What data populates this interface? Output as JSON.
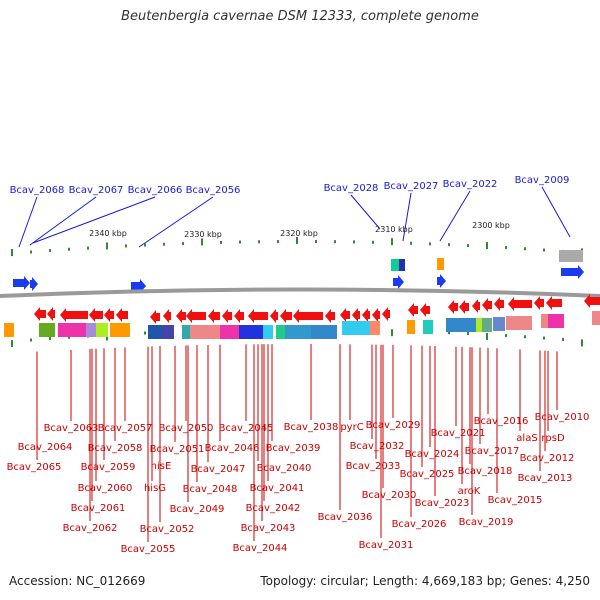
{
  "title": "Beutenbergia cavernae DSM 12333, complete genome",
  "footer": {
    "accession": "Accession: NC_012669",
    "summary": "Topology: circular; Length: 4,669,183 bp; Genes: 4,250"
  },
  "colors": {
    "top_label": "#1a1adb",
    "bottom_label": "#cc0000",
    "forward_gene": "#1a3cf0",
    "reverse_gene": "#f01010",
    "backbone": "#9a9a9a",
    "tick": "#2e8b2e"
  },
  "kbp_markers": [
    "2340 kbp",
    "2330 kbp",
    "2320 kbp",
    "2310 kbp",
    "2300 kbp"
  ],
  "top_labels": [
    "Bcav_2068",
    "Bcav_2067",
    "Bcav_2066",
    "Bcav_2056",
    "Bcav_2028",
    "Bcav_2027",
    "Bcav_2022",
    "Bcav_2009"
  ],
  "bottom_labels": [
    "Bcav_2063",
    "Bcav_2057",
    "Bcav_2050",
    "Bcav_2045",
    "Bcav_2038",
    "pyrC",
    "Bcav_2029",
    "Bcav_2016",
    "Bcav_2010",
    "Bcav_2064",
    "Bcav_2058",
    "Bcav_2051",
    "Bcav_2046",
    "Bcav_2039",
    "Bcav_2032",
    "Bcav_2021",
    "Bcav_2017",
    "alaS",
    "rpsD",
    "Bcav_2065",
    "Bcav_2059",
    "hisE",
    "Bcav_2047",
    "Bcav_2040",
    "Bcav_2033",
    "Bcav_2024",
    "Bcav_2012",
    "Bcav_2060",
    "hisG",
    "Bcav_2048",
    "Bcav_2041",
    "Bcav_2030",
    "Bcav_2025",
    "Bcav_2018",
    "Bcav_2013",
    "Bcav_2061",
    "Bcav_2049",
    "Bcav_2042",
    "Bcav_2023",
    "aroK",
    "Bcav_2015",
    "Bcav_2062",
    "Bcav_2052",
    "Bcav_2043",
    "Bcav_2036",
    "Bcav_2026",
    "Bcav_2019",
    "Bcav_2055",
    "Bcav_2044",
    "Bcav_2031"
  ]
}
